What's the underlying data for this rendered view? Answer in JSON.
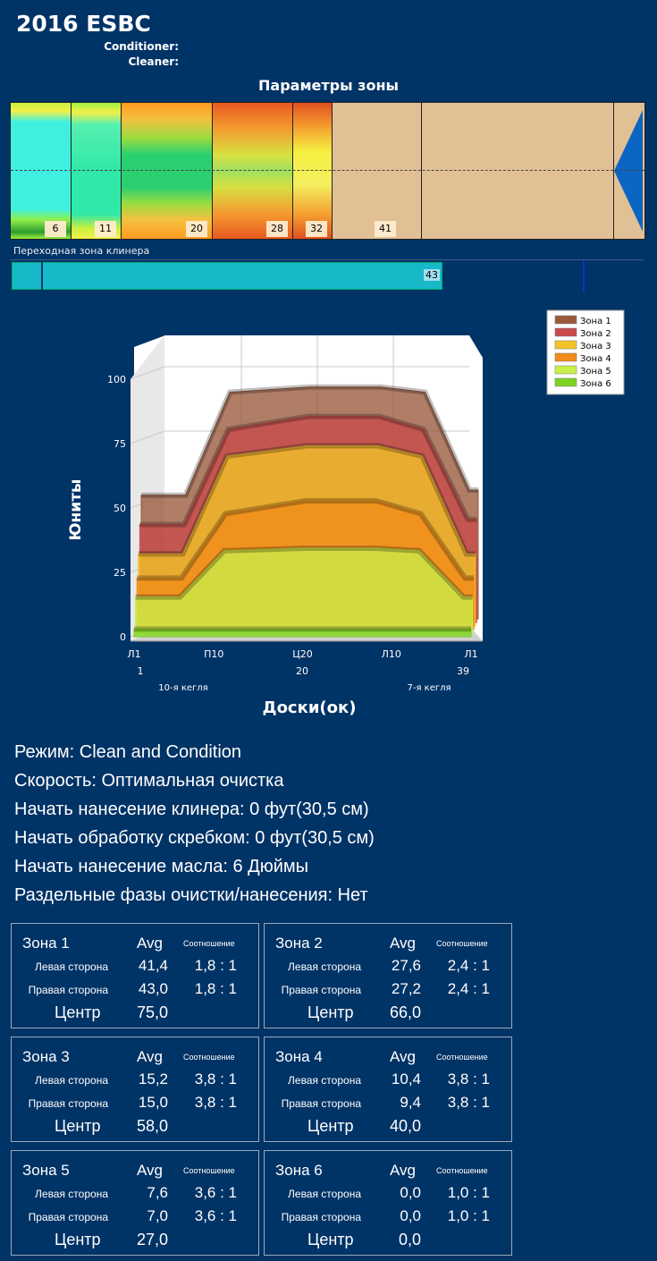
{
  "header": {
    "title": "2016 ESBC",
    "conditioner_label": "Conditioner:",
    "cleaner_label": "Cleaner:"
  },
  "zone_params": {
    "title": "Параметры зоны",
    "labels": [
      "6",
      "11",
      "20",
      "28",
      "32",
      "41"
    ]
  },
  "transition": {
    "label": "Переходная зона клинера",
    "value": "43"
  },
  "chart_data": {
    "type": "area",
    "ylabel": "Юниты",
    "xlabel": "Доски(ок)",
    "ylim": [
      0,
      100
    ],
    "yticks": [
      0,
      25,
      50,
      75,
      100
    ],
    "xticks": [
      "Л1",
      "П10",
      "Ц20",
      "Л10",
      "Л1"
    ],
    "xnums": [
      "1",
      "20",
      "39"
    ],
    "xsubs": [
      "10-я кегля",
      "7-я кегля"
    ],
    "legend_position": "top-right",
    "series": [
      {
        "name": "Зона 1",
        "color": "#9a5a3c",
        "values": {
          "1": 48,
          "6": 48,
          "11": 88,
          "20": 90,
          "28": 90,
          "33": 88,
          "38": 50,
          "39": 50
        }
      },
      {
        "name": "Зона 2",
        "color": "#c84a4a",
        "values": {
          "1": 38,
          "6": 38,
          "11": 75,
          "20": 80,
          "28": 80,
          "33": 75,
          "38": 40,
          "39": 40
        }
      },
      {
        "name": "Зона 3",
        "color": "#f2c428",
        "values": {
          "1": 28,
          "6": 28,
          "11": 66,
          "20": 70,
          "28": 70,
          "33": 66,
          "38": 28,
          "39": 28
        }
      },
      {
        "name": "Зона 4",
        "color": "#f28c1a",
        "values": {
          "1": 20,
          "6": 20,
          "11": 45,
          "20": 50,
          "28": 50,
          "33": 45,
          "38": 20,
          "39": 20
        }
      },
      {
        "name": "Зона 5",
        "color": "#c8f04a",
        "values": {
          "1": 14,
          "6": 14,
          "11": 32,
          "20": 33,
          "28": 33,
          "33": 32,
          "38": 14,
          "39": 14
        }
      },
      {
        "name": "Зона 6",
        "color": "#7ed321",
        "values": {
          "1": 3,
          "6": 3,
          "11": 3,
          "20": 3,
          "28": 3,
          "33": 3,
          "38": 3,
          "39": 3
        }
      }
    ]
  },
  "info": [
    "Режим: Clean and Condition",
    "Скорость: Оптимальная очистка",
    "Начать нанесение клинера: 0 фут(30,5 см)",
    "Начать обработку скребком: 0 фут(30,5 см)",
    "Начать нанесение масла: 6 Дюймы",
    "Раздельные фазы очистки/нанесения: Нет"
  ],
  "zones": [
    {
      "name": "Зона 1",
      "avg": "Avg",
      "ratio": "Соотношение",
      "left_label": "Левая сторона",
      "left": "41,4",
      "left_ratio": "1,8 : 1",
      "right_label": "Правая сторона",
      "right": "43,0",
      "right_ratio": "1,8 : 1",
      "center_label": "Центр",
      "center": "75,0"
    },
    {
      "name": "Зона 2",
      "avg": "Avg",
      "ratio": "Соотношение",
      "left_label": "Левая сторона",
      "left": "27,6",
      "left_ratio": "2,4 : 1",
      "right_label": "Правая сторона",
      "right": "27,2",
      "right_ratio": "2,4 : 1",
      "center_label": "Центр",
      "center": "66,0"
    },
    {
      "name": "Зона 3",
      "avg": "Avg",
      "ratio": "Соотношение",
      "left_label": "Левая сторона",
      "left": "15,2",
      "left_ratio": "3,8 : 1",
      "right_label": "Правая сторона",
      "right": "15,0",
      "right_ratio": "3,8 : 1",
      "center_label": "Центр",
      "center": "58,0"
    },
    {
      "name": "Зона 4",
      "avg": "Avg",
      "ratio": "Соотношение",
      "left_label": "Левая сторона",
      "left": "10,4",
      "left_ratio": "3,8 : 1",
      "right_label": "Правая сторона",
      "right": "9,4",
      "right_ratio": "3,8 : 1",
      "center_label": "Центр",
      "center": "40,0"
    },
    {
      "name": "Зона 5",
      "avg": "Avg",
      "ratio": "Соотношение",
      "left_label": "Левая сторона",
      "left": "7,6",
      "left_ratio": "3,6 : 1",
      "right_label": "Правая сторона",
      "right": "7,0",
      "right_ratio": "3,6 : 1",
      "center_label": "Центр",
      "center": "27,0"
    },
    {
      "name": "Зона 6",
      "avg": "Avg",
      "ratio": "Соотношение",
      "left_label": "Левая сторона",
      "left": "0,0",
      "left_ratio": "1,0 : 1",
      "right_label": "Правая сторона",
      "right": "0,0",
      "right_ratio": "1,0 : 1",
      "center_label": "Центр",
      "center": "0,0"
    }
  ]
}
